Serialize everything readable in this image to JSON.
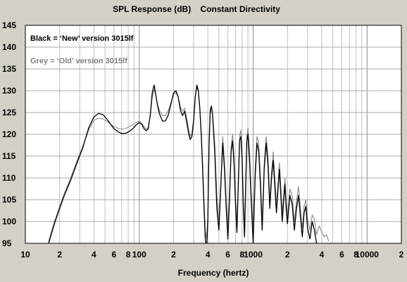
{
  "chart_data": {
    "type": "line",
    "title": "SPL Response (dB)    Constant Directivity",
    "xlabel": "Frequency (hertz)",
    "ylabel": "",
    "x_scale": "log",
    "xlim": [
      10,
      20000
    ],
    "ylim": [
      95,
      145
    ],
    "y_ticks": [
      95,
      100,
      105,
      110,
      115,
      120,
      125,
      130,
      135,
      140,
      145
    ],
    "x_ticks": [
      {
        "value": 10,
        "label": "10"
      },
      {
        "value": 20,
        "label": "2"
      },
      {
        "value": 40,
        "label": "4"
      },
      {
        "value": 60,
        "label": "6"
      },
      {
        "value": 80,
        "label": "8"
      },
      {
        "value": 100,
        "label": "100"
      },
      {
        "value": 200,
        "label": "2"
      },
      {
        "value": 400,
        "label": "4"
      },
      {
        "value": 600,
        "label": "6"
      },
      {
        "value": 800,
        "label": "8"
      },
      {
        "value": 1000,
        "label": "1000"
      },
      {
        "value": 2000,
        "label": "2"
      },
      {
        "value": 4000,
        "label": "4"
      },
      {
        "value": 6000,
        "label": "6"
      },
      {
        "value": 8000,
        "label": "8"
      },
      {
        "value": 10000,
        "label": "10000"
      },
      {
        "value": 20000,
        "label": "2"
      }
    ],
    "grid": true,
    "legend": [
      {
        "text": "Black = ‘New’ version 3015lf",
        "color": "#000000"
      },
      {
        "text": "Grey = ‘Old’ version 3015lf",
        "color": "#808080"
      }
    ],
    "series": [
      {
        "color": "#000000",
        "x": [
          16,
          18,
          20,
          22,
          25,
          28,
          32,
          36,
          40,
          44,
          48,
          52,
          56,
          60,
          65,
          70,
          75,
          80,
          85,
          90,
          95,
          100,
          105,
          110,
          115,
          120,
          125,
          130,
          135,
          140,
          145,
          150,
          160,
          170,
          180,
          190,
          200,
          210,
          220,
          230,
          240,
          250,
          260,
          270,
          280,
          290,
          300,
          310,
          320,
          330,
          340,
          350,
          360,
          370,
          380,
          390,
          400,
          410,
          420,
          430,
          440,
          460,
          480,
          500,
          520,
          540,
          560,
          580,
          600,
          620,
          640,
          660,
          680,
          700,
          720,
          740,
          760,
          780,
          800,
          820,
          840,
          860,
          880,
          900,
          930,
          960,
          1000,
          1040,
          1080,
          1120,
          1160,
          1200,
          1250,
          1300,
          1350,
          1400,
          1450,
          1500,
          1550,
          1600,
          1650,
          1700,
          1750,
          1800,
          1850,
          1900,
          1950,
          2000,
          2100,
          2200,
          2300,
          2400,
          2500,
          2600,
          2700,
          2800,
          2900,
          3000,
          3150,
          3300,
          3450,
          3600
        ],
        "y": [
          95,
          99.5,
          103,
          106,
          109.5,
          113,
          117,
          121.5,
          124,
          124.8,
          124.5,
          123.5,
          122.3,
          121.3,
          120.6,
          120.2,
          120.2,
          120.5,
          121,
          121.6,
          122.3,
          122.7,
          122.3,
          121.3,
          120.8,
          121.3,
          124.5,
          129.5,
          131.3,
          129,
          126.5,
          124.8,
          123,
          123.1,
          124.5,
          127,
          129.5,
          130,
          128.5,
          125.5,
          124.3,
          125.3,
          123,
          120.5,
          118.8,
          119.5,
          123,
          128.5,
          131.3,
          130,
          126,
          120,
          112,
          103.5,
          96,
          93.5,
          100,
          118,
          125.5,
          126.5,
          124.5,
          116,
          103,
          98,
          108,
          118,
          112,
          103,
          96,
          105,
          116,
          118.5,
          113,
          104,
          97.5,
          108,
          118.5,
          119.5,
          114,
          103,
          96.5,
          108,
          118.5,
          120,
          114,
          105,
          95,
          110,
          118,
          116,
          108,
          98,
          112,
          118,
          113,
          103,
          110,
          114,
          108,
          102,
          107,
          112,
          106,
          100,
          104.5,
          108.5,
          103,
          99.5,
          106,
          104,
          98,
          103,
          106,
          101,
          96.5,
          102,
          103.5,
          98.5,
          96,
          100,
          98,
          95
        ]
      },
      {
        "color": "#808080",
        "x": [
          16,
          18,
          20,
          22,
          25,
          28,
          32,
          36,
          40,
          44,
          48,
          52,
          56,
          60,
          65,
          70,
          75,
          80,
          85,
          90,
          95,
          100,
          105,
          110,
          115,
          120,
          125,
          130,
          135,
          140,
          145,
          150,
          160,
          170,
          180,
          190,
          200,
          210,
          220,
          230,
          240,
          250,
          260,
          270,
          280,
          290,
          300,
          310,
          320,
          330,
          340,
          350,
          360,
          370,
          380,
          390,
          400,
          410,
          420,
          430,
          440,
          460,
          480,
          500,
          520,
          540,
          560,
          580,
          600,
          620,
          640,
          660,
          680,
          700,
          720,
          740,
          760,
          780,
          800,
          820,
          840,
          860,
          880,
          900,
          930,
          960,
          1000,
          1040,
          1080,
          1120,
          1160,
          1200,
          1250,
          1300,
          1350,
          1400,
          1450,
          1500,
          1550,
          1600,
          1650,
          1700,
          1750,
          1800,
          1850,
          1900,
          1950,
          2000,
          2100,
          2200,
          2300,
          2400,
          2500,
          2600,
          2700,
          2800,
          2900,
          3000,
          3150,
          3300,
          3450,
          3600,
          3800,
          4000,
          4200,
          4400,
          4600
        ],
        "y": [
          95.5,
          100,
          103.5,
          106.5,
          110,
          113.5,
          117.3,
          121,
          123.2,
          123.7,
          123.5,
          123,
          122.3,
          121.8,
          121.4,
          121.2,
          121.3,
          121.6,
          122,
          122.4,
          122.8,
          123,
          122.6,
          121.8,
          121.2,
          121.6,
          124.2,
          128.5,
          130.3,
          128.8,
          126.8,
          125.5,
          124.3,
          124.3,
          125.5,
          127.3,
          129.2,
          129.5,
          128.5,
          126.3,
          125.3,
          126,
          124,
          121.5,
          119.5,
          120.2,
          123.5,
          128.5,
          130.8,
          129.8,
          126.5,
          121,
          113.5,
          105,
          98,
          96,
          101,
          117,
          124.5,
          126,
          124.8,
          118,
          106,
          100,
          109,
          119.5,
          114,
          105,
          98.5,
          107,
          117,
          120,
          115,
          106,
          99.5,
          109.5,
          119.5,
          121,
          116,
          105,
          98.5,
          110,
          119.5,
          121.5,
          116,
          107,
          97.5,
          112,
          119.5,
          118,
          110,
          100,
          113.5,
          119.5,
          115,
          105,
          111.5,
          116,
          110,
          104,
          108.5,
          113.5,
          108,
          102,
          106,
          110,
          105,
          101,
          107.5,
          106,
          100,
          104.5,
          108,
          103,
          98.5,
          103.5,
          105,
          100.5,
          98,
          101.5,
          100.5,
          97,
          99,
          97.5,
          96.5,
          97,
          95.5
        ]
      }
    ]
  }
}
